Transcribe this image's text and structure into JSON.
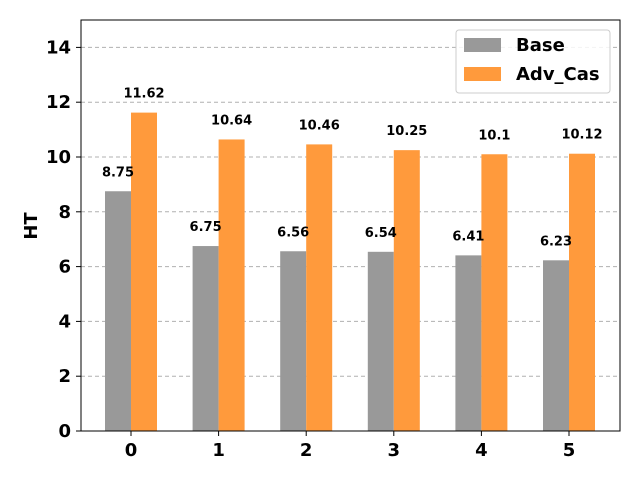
{
  "chart_data": {
    "type": "bar",
    "categories": [
      "0",
      "1",
      "2",
      "3",
      "4",
      "5"
    ],
    "series": [
      {
        "name": "Base",
        "values": [
          8.75,
          6.75,
          6.56,
          6.54,
          6.41,
          6.23
        ],
        "color": "#999999",
        "labels": [
          "8.75",
          "6.75",
          "6.56",
          "6.54",
          "6.41",
          "6.23"
        ]
      },
      {
        "name": "Adv_Cas",
        "values": [
          11.62,
          10.64,
          10.46,
          10.25,
          10.1,
          10.12
        ],
        "color": "#ff9a3c",
        "labels": [
          "11.62",
          "10.64",
          "10.46",
          "10.25",
          "10.1",
          "10.12"
        ]
      }
    ],
    "title": "",
    "xlabel": "",
    "ylabel": "HT",
    "ylim": [
      0,
      15
    ],
    "yticks": [
      0,
      2,
      4,
      6,
      8,
      10,
      12,
      14
    ],
    "ytick_labels": [
      "0",
      "2",
      "4",
      "6",
      "8",
      "10",
      "12",
      "14"
    ],
    "grid": true,
    "grid_axis": "y",
    "legend_position": "top-right"
  }
}
